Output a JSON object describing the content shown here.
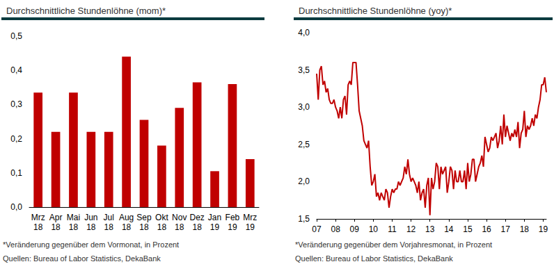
{
  "chart_data": [
    {
      "type": "bar",
      "title": "Durchschnittliche Stundenlöhne (mom)*",
      "categories": [
        "Mrz 18",
        "Apr 18",
        "Mai 18",
        "Jun 18",
        "Jul 18",
        "Aug 18",
        "Sep 18",
        "Okt 18",
        "Nov 18",
        "Dez 18",
        "Jan 19",
        "Feb 19",
        "Mrz 19"
      ],
      "values": [
        0.335,
        0.22,
        0.335,
        0.22,
        0.22,
        0.44,
        0.255,
        0.18,
        0.29,
        0.365,
        0.105,
        0.36,
        0.14
      ],
      "color": "#c00000",
      "ylim": [
        0,
        0.5
      ],
      "yticks": [
        {
          "value": 0,
          "label": "0,0"
        },
        {
          "value": 0.1,
          "label": "0,1"
        },
        {
          "value": 0.2,
          "label": "0,2"
        },
        {
          "value": 0.3,
          "label": "0,3"
        },
        {
          "value": 0.4,
          "label": "0,4"
        },
        {
          "value": 0.5,
          "label": "0,5"
        }
      ],
      "grid": false,
      "annotations": [
        "*Veränderung gegenüber dem Vormonat, in Prozent",
        "Quellen: Bureau of Labor Statistics, DekaBank"
      ]
    },
    {
      "type": "line",
      "title": "Durchschnittliche Stundenlöhne (yoy)*",
      "categories": [
        "07",
        null,
        null,
        null,
        null,
        null,
        null,
        null,
        null,
        null,
        null,
        null,
        "08",
        null,
        null,
        null,
        null,
        null,
        null,
        null,
        null,
        null,
        null,
        null,
        "09",
        null,
        null,
        null,
        null,
        null,
        null,
        null,
        null,
        null,
        null,
        null,
        "10",
        null,
        null,
        null,
        null,
        null,
        null,
        null,
        null,
        null,
        null,
        null,
        "11",
        null,
        null,
        null,
        null,
        null,
        null,
        null,
        null,
        null,
        null,
        null,
        "12",
        null,
        null,
        null,
        null,
        null,
        null,
        null,
        null,
        null,
        null,
        null,
        "13",
        null,
        null,
        null,
        null,
        null,
        null,
        null,
        null,
        null,
        null,
        null,
        "14",
        null,
        null,
        null,
        null,
        null,
        null,
        null,
        null,
        null,
        null,
        null,
        "15",
        null,
        null,
        null,
        null,
        null,
        null,
        null,
        null,
        null,
        null,
        null,
        "16",
        null,
        null,
        null,
        null,
        null,
        null,
        null,
        null,
        null,
        null,
        null,
        "17",
        null,
        null,
        null,
        null,
        null,
        null,
        null,
        null,
        null,
        null,
        null,
        "18",
        null,
        null,
        null,
        null,
        null,
        null,
        null,
        null,
        null,
        null,
        null,
        "19",
        null,
        null
      ],
      "values": [
        3.45,
        3.1,
        3.5,
        3.55,
        3.3,
        3.35,
        3.2,
        3.25,
        3.1,
        3.05,
        3.05,
        3.1,
        3.0,
        2.95,
        2.85,
        3.0,
        2.85,
        3.1,
        3.15,
        2.9,
        3.3,
        3.35,
        3.3,
        3.6,
        3.6,
        3.6,
        3.3,
        2.95,
        2.85,
        2.75,
        2.55,
        2.5,
        2.45,
        2.55,
        2.2,
        1.95,
        2.0,
        2.1,
        1.8,
        1.85,
        1.75,
        1.85,
        1.8,
        1.75,
        1.9,
        1.85,
        1.65,
        1.8,
        1.9,
        1.85,
        1.9,
        1.9,
        2.0,
        1.95,
        2.0,
        2.05,
        2.2,
        2.1,
        2.3,
        2.1,
        2.0,
        2.05,
        2.0,
        1.95,
        1.85,
        2.0,
        1.75,
        1.85,
        1.9,
        1.65,
        1.95,
        2.05,
        1.55,
        2.05,
        1.9,
        2.0,
        2.25,
        2.2,
        1.9,
        2.2,
        2.1,
        2.15,
        2.2,
        1.85,
        2.0,
        2.2,
        2.15,
        1.9,
        2.15,
        2.0,
        2.0,
        2.15,
        2.0,
        2.0,
        2.15,
        1.9,
        2.25,
        2.0,
        2.1,
        2.3,
        2.3,
        2.0,
        2.1,
        2.2,
        2.25,
        2.35,
        2.2,
        2.6,
        2.5,
        2.4,
        2.45,
        2.6,
        2.55,
        2.6,
        2.65,
        2.45,
        2.55,
        2.75,
        2.5,
        2.9,
        2.6,
        2.75,
        2.65,
        2.55,
        2.65,
        2.6,
        2.7,
        2.6,
        2.8,
        2.45,
        2.65,
        2.7,
        2.95,
        2.6,
        2.75,
        2.7,
        2.75,
        2.85,
        2.75,
        2.9,
        2.85,
        3.0,
        3.1,
        3.3,
        3.3,
        3.4,
        3.2
      ],
      "color": "#c00000",
      "ylim": [
        1.5,
        4.0
      ],
      "yticks": [
        {
          "value": 1.5,
          "label": "1,5"
        },
        {
          "value": 2.0,
          "label": "2,0"
        },
        {
          "value": 2.5,
          "label": "2,5"
        },
        {
          "value": 3.0,
          "label": "3,0"
        },
        {
          "value": 3.5,
          "label": "3,5"
        },
        {
          "value": 4.0,
          "label": "4,0"
        }
      ],
      "grid": false,
      "annotations": [
        "*Veränderung gegenüber dem Vorjahresmonat, in Prozent",
        "Quellen: Bureau of Labor Statistics, DekaBank"
      ]
    }
  ]
}
